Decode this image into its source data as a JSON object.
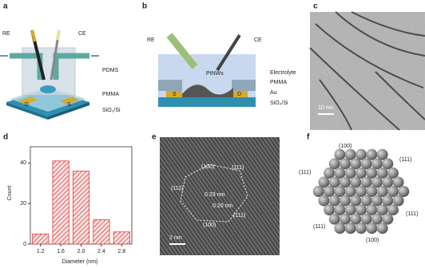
{
  "panels": {
    "a": {
      "label": "a",
      "texts": [
        "RE",
        "CE",
        "PDMS",
        "PMMA",
        "D",
        "S",
        "SiO₂/Si"
      ]
    },
    "b": {
      "label": "b",
      "texts": [
        "RE",
        "CE",
        "PtNWs",
        "Electrolyte",
        "PMMA",
        "Au",
        "S",
        "D",
        "SiO₂/Si"
      ]
    },
    "c": {
      "label": "c",
      "scale_bar": "10 nm"
    },
    "e": {
      "label": "e",
      "texts": [
        "(100)",
        "(111)",
        "(111)",
        "0.23 nm",
        "0.20 nm",
        "(100)",
        "(111)"
      ],
      "scale_bar": "2 nm"
    },
    "f": {
      "label": "f",
      "texts": [
        "(100)",
        "(111)",
        "(111)",
        "(111)",
        "(111)",
        "(100)"
      ]
    }
  },
  "chart_data": {
    "type": "bar",
    "label": "d",
    "categories": [
      "1.2",
      "1.6",
      "2.0",
      "2.4",
      "2.8"
    ],
    "values": [
      5,
      41,
      36,
      12,
      6
    ],
    "color": "#e03c3c",
    "xlabel": "Diameter (nm)",
    "ylabel": "Count",
    "ylim": [
      0,
      48
    ],
    "yticks": [
      0,
      20,
      40
    ]
  }
}
